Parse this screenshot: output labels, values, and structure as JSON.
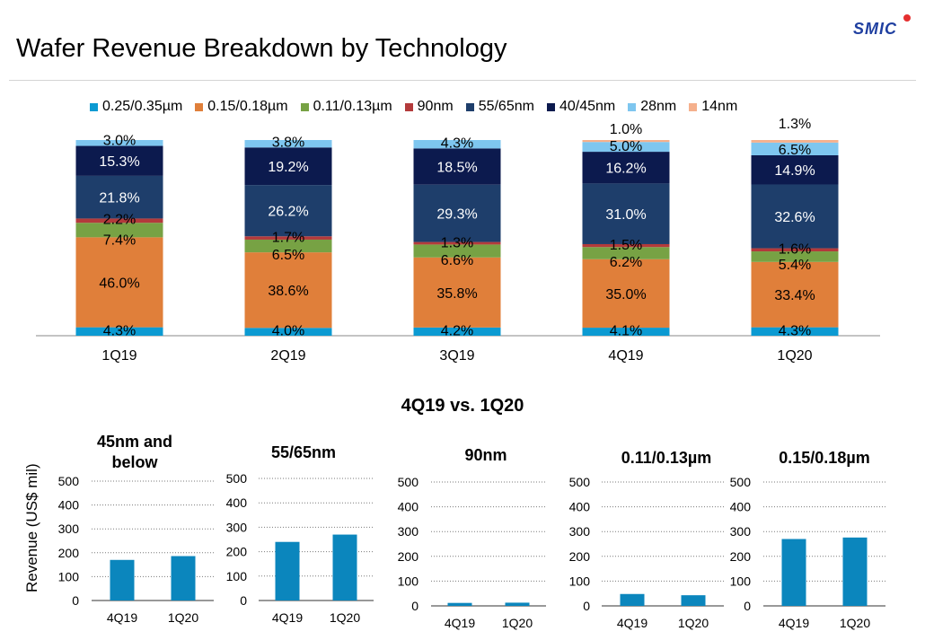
{
  "page": {
    "title": "Wafer Revenue Breakdown by Technology",
    "logo": "SMIC",
    "compare_title": "4Q19 vs. 1Q20",
    "small_ylabel": "Revenue (US$  mil)"
  },
  "colors": {
    "0.25/0.35µm": "#0b9ad2",
    "0.15/0.18µm": "#e07f3a",
    "0.11/0.13µm": "#77a244",
    "90nm": "#b33a3b",
    "55/65nm": "#1e3e6b",
    "40/45nm": "#0c1a4e",
    "28nm": "#7ec6ef",
    "14nm": "#f5b08c",
    "small_bar": "#0b86bd"
  },
  "chart_data": [
    {
      "type": "bar",
      "stacked": true,
      "categories": [
        "1Q19",
        "2Q19",
        "3Q19",
        "4Q19",
        "1Q20"
      ],
      "legend_position": "top",
      "series": [
        {
          "name": "0.25/0.35µm",
          "values": [
            4.3,
            4.0,
            4.2,
            4.1,
            4.3
          ],
          "labels": [
            "4.3%",
            "4.0%",
            "4.2%",
            "4.1%",
            "4.3%"
          ]
        },
        {
          "name": "0.15/0.18µm",
          "values": [
            46.0,
            38.6,
            35.8,
            35.0,
            33.4
          ],
          "labels": [
            "46.0%",
            "38.6%",
            "35.8%",
            "35.0%",
            "33.4%"
          ]
        },
        {
          "name": "0.11/0.13µm",
          "values": [
            7.4,
            6.5,
            6.6,
            6.2,
            5.4
          ],
          "labels": [
            "7.4%",
            "6.5%",
            "6.6%",
            "6.2%",
            "5.4%"
          ]
        },
        {
          "name": "90nm",
          "values": [
            2.2,
            1.7,
            1.3,
            1.5,
            1.6
          ],
          "labels": [
            "2.2%",
            "1.7%",
            "1.3%",
            "1.5%",
            "1.6%"
          ]
        },
        {
          "name": "55/65nm",
          "values": [
            21.8,
            26.2,
            29.3,
            31.0,
            32.6
          ],
          "labels": [
            "21.8%",
            "26.2%",
            "29.3%",
            "31.0%",
            "32.6%"
          ]
        },
        {
          "name": "40/45nm",
          "values": [
            15.3,
            19.2,
            18.5,
            16.2,
            14.9
          ],
          "labels": [
            "15.3%",
            "19.2%",
            "18.5%",
            "16.2%",
            "14.9%"
          ]
        },
        {
          "name": "28nm",
          "values": [
            3.0,
            3.8,
            4.3,
            5.0,
            6.5
          ],
          "labels": [
            "3.0%",
            "3.8%",
            "4.3%",
            "5.0%",
            "6.5%"
          ]
        },
        {
          "name": "14nm",
          "values": [
            0,
            0,
            0,
            1.0,
            1.3
          ],
          "labels": [
            "",
            "",
            "",
            "1.0%",
            "1.3%"
          ]
        }
      ]
    },
    {
      "type": "bar",
      "title": "45nm and below",
      "ylabel": "Revenue (US$  mil)",
      "categories": [
        "4Q19",
        "1Q20"
      ],
      "values": [
        170,
        186
      ],
      "ylim": [
        0,
        500
      ],
      "yticks": [
        "0",
        "100",
        "200",
        "300",
        "400",
        "500"
      ],
      "grid": true
    },
    {
      "type": "bar",
      "title": "55/65nm",
      "categories": [
        "4Q19",
        "1Q20"
      ],
      "values": [
        240,
        270
      ],
      "ylim": [
        0,
        500
      ],
      "yticks": [
        "0",
        "100",
        "200",
        "300",
        "400",
        "500"
      ],
      "grid": true
    },
    {
      "type": "bar",
      "title": "90nm",
      "categories": [
        "4Q19",
        "1Q20"
      ],
      "values": [
        12,
        13
      ],
      "ylim": [
        0,
        500
      ],
      "yticks": [
        "0",
        "100",
        "200",
        "300",
        "400",
        "500"
      ],
      "grid": true
    },
    {
      "type": "bar",
      "title": "0.11/0.13µm",
      "categories": [
        "4Q19",
        "1Q20"
      ],
      "values": [
        48,
        43
      ],
      "ylim": [
        0,
        500
      ],
      "yticks": [
        "0",
        "100",
        "200",
        "300",
        "400",
        "500"
      ],
      "grid": true
    },
    {
      "type": "bar",
      "title": "0.15/0.18µm",
      "categories": [
        "4Q19",
        "1Q20"
      ],
      "values": [
        270,
        276
      ],
      "ylim": [
        0,
        500
      ],
      "yticks": [
        "0",
        "100",
        "200",
        "300",
        "400",
        "500"
      ],
      "grid": true
    }
  ]
}
